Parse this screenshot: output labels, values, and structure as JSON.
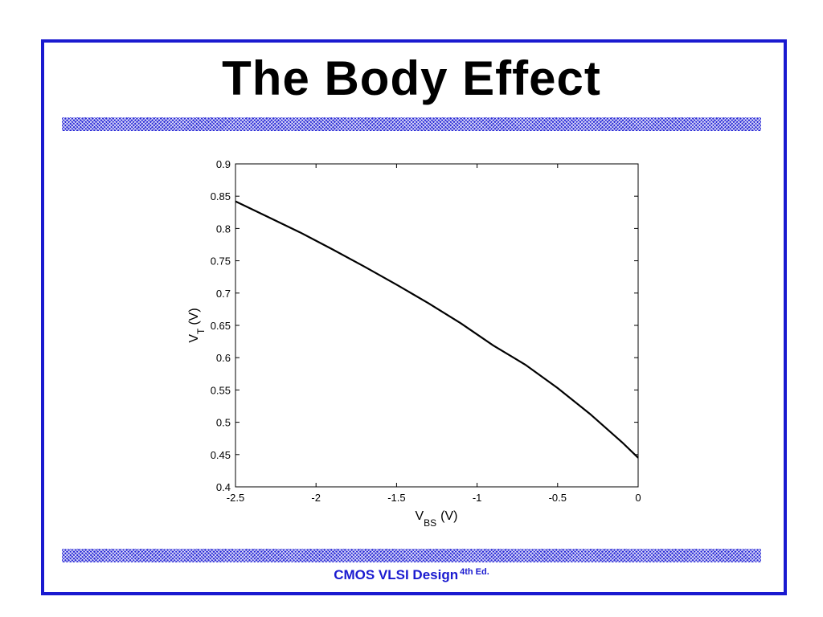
{
  "slide": {
    "title": "The Body Effect",
    "footer_main": "CMOS VLSI Design",
    "footer_edition": "4th Ed.",
    "colors": {
      "frame": "#1a1ad0",
      "band": "#2a2ad6",
      "footer_text": "#1a1ad0"
    }
  },
  "chart_data": {
    "type": "line",
    "title": "",
    "xlabel_main": "V",
    "xlabel_sub": "BS",
    "xlabel_unit": "(V)",
    "ylabel_main": "V",
    "ylabel_sub": "T",
    "ylabel_unit": "(V)",
    "xlim": [
      -2.5,
      0
    ],
    "ylim": [
      0.4,
      0.9
    ],
    "xticks": [
      -2.5,
      -2,
      -1.5,
      -1,
      -0.5,
      0
    ],
    "xtick_labels": [
      "-2.5",
      "-2",
      "-1.5",
      "-1",
      "-0.5",
      "0"
    ],
    "yticks": [
      0.4,
      0.45,
      0.5,
      0.55,
      0.6,
      0.65,
      0.7,
      0.75,
      0.8,
      0.85,
      0.9
    ],
    "ytick_labels": [
      "0.4",
      "0.45",
      "0.5",
      "0.55",
      "0.6",
      "0.65",
      "0.7",
      "0.75",
      "0.8",
      "0.85",
      "0.9"
    ],
    "grid": false,
    "series": [
      {
        "x": [
          -2.5,
          -2.3,
          -2.1,
          -1.9,
          -1.7,
          -1.5,
          -1.3,
          -1.1,
          -0.9,
          -0.7,
          -0.5,
          -0.3,
          -0.1,
          0
        ],
        "y": [
          0.842,
          0.818,
          0.794,
          0.768,
          0.741,
          0.713,
          0.684,
          0.653,
          0.619,
          0.589,
          0.553,
          0.513,
          0.469,
          0.445
        ]
      }
    ]
  }
}
